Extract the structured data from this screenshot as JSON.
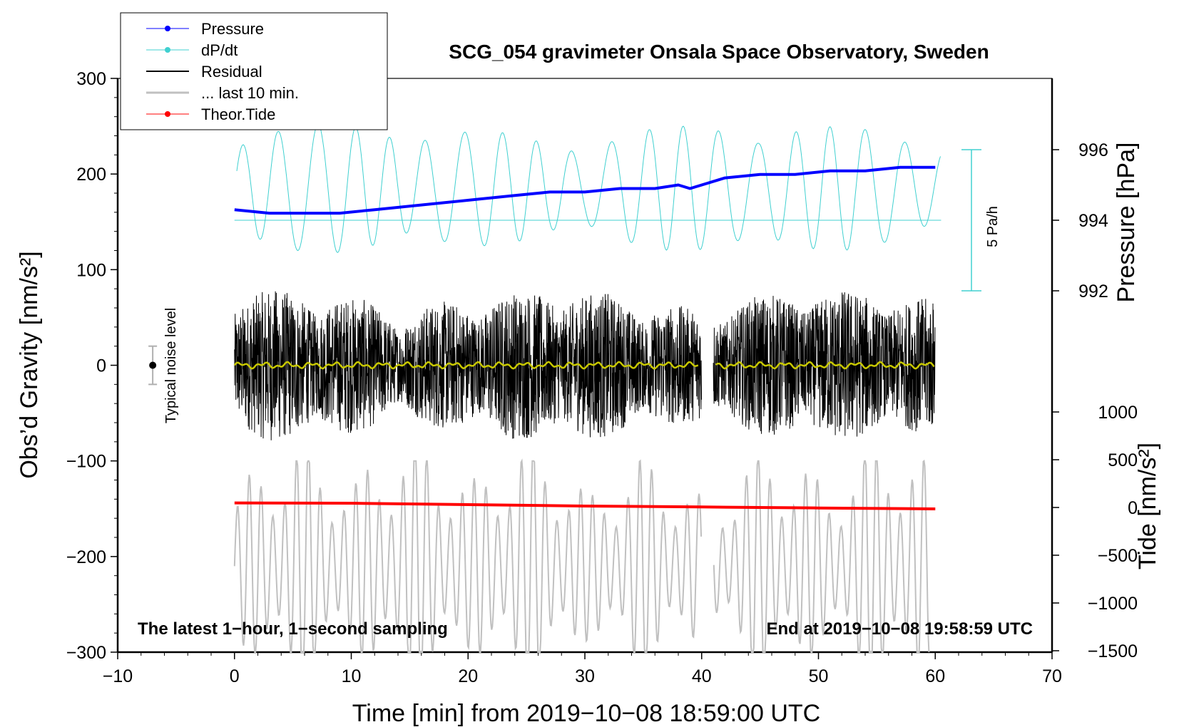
{
  "colors": {
    "pressure": "#0000ff",
    "dpdt": "#40d0d0",
    "residual": "#000000",
    "last10": "#c0c0c0",
    "tide": "#ff0000",
    "smoothed": "#c8c800",
    "noise": "#b0b0b0"
  },
  "chart_data": {
    "type": "line",
    "title": "SCG_054 gravimeter Onsala Space Observatory, Sweden",
    "xlabel": "Time [min] from 2019−10−08 18:59:00 UTC",
    "ylabel_left": "Obs’d Gravity [nm/s²]",
    "ylabel_pressure": "Pressure [hPa]",
    "ylabel_tide": "Tide [nm/s²]",
    "xlim": [
      -10,
      70
    ],
    "ylim_left": [
      -300,
      300
    ],
    "pressure_range": [
      992,
      996
    ],
    "tide_range": [
      -1500,
      1000
    ],
    "x_ticks": [
      "−10",
      "0",
      "10",
      "20",
      "30",
      "40",
      "50",
      "60",
      "70"
    ],
    "y_ticks_left": [
      "300",
      "200",
      "100",
      "0",
      "−100",
      "−200",
      "−300"
    ],
    "pressure_ticks": [
      "996",
      "994",
      "992"
    ],
    "tide_ticks": [
      "1000",
      "500",
      "0",
      "−500",
      "−1000",
      "−1500"
    ],
    "legend": [
      "Pressure",
      "dP/dt",
      "Residual",
      "... last 10 min.",
      "Theor.Tide"
    ],
    "annotations": {
      "bottom_left": "The latest 1−hour, 1−second sampling",
      "bottom_right": "End at 2019−10−08 19:58:59 UTC",
      "noise_label": "Typical noise level",
      "rate_label": "5 Pa/h"
    },
    "pressure_series": {
      "x": [
        0,
        3,
        6,
        9,
        12,
        15,
        18,
        21,
        24,
        27,
        30,
        33,
        36,
        38,
        39,
        42,
        45,
        48,
        51,
        54,
        57,
        60
      ],
      "y": [
        994.3,
        994.2,
        994.2,
        994.2,
        994.3,
        994.4,
        994.5,
        994.6,
        994.7,
        994.8,
        994.8,
        994.9,
        994.9,
        995.0,
        994.9,
        995.2,
        995.3,
        995.3,
        995.4,
        995.4,
        995.5,
        995.5
      ]
    },
    "tide_series": {
      "x": [
        0,
        10,
        20,
        30,
        40,
        50,
        60
      ],
      "y": [
        48,
        45,
        30,
        15,
        5,
        -5,
        -15
      ]
    },
    "noise_level": {
      "x": -7,
      "center": 0,
      "half_range": 20
    },
    "dpdt_zero_pressure": 994.0,
    "rate_bar_pressure_range": [
      992.0,
      996.0
    ],
    "residual_gap_minutes": [
      40,
      41
    ]
  }
}
